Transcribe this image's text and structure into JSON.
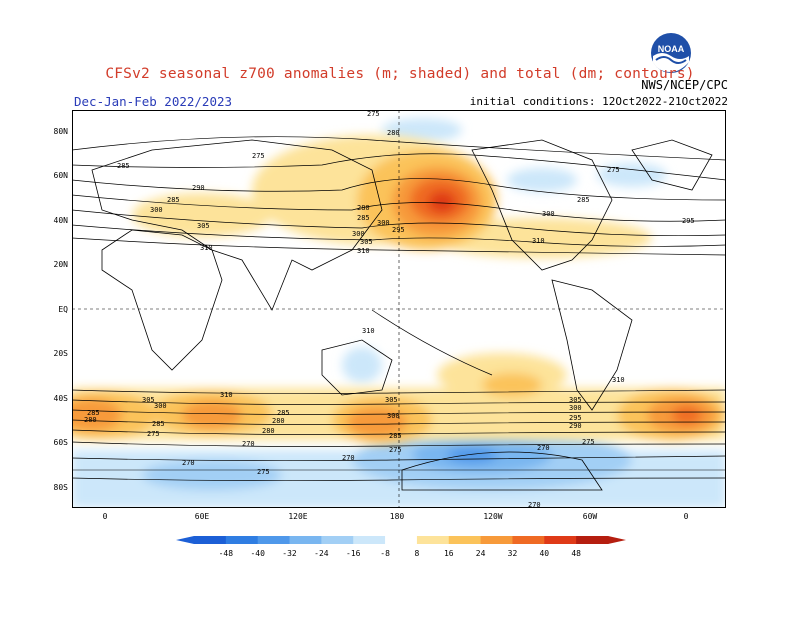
{
  "header": {
    "title": "CFSv2 seasonal z700 anomalies (m; shaded) and total (dm; contours)",
    "season": "Dec-Jan-Feb 2022/2023",
    "initial_conditions": "initial conditions: 12Oct2022-21Oct2022",
    "credit": "NWS/NCEP/CPC",
    "logo_text": "NOAA"
  },
  "axes": {
    "lat_labels": [
      "80N",
      "60N",
      "40N",
      "20N",
      "EQ",
      "20S",
      "40S",
      "60S",
      "80S"
    ],
    "lon_labels": [
      "0",
      "60E",
      "120E",
      "180",
      "120W",
      "60W",
      "0"
    ]
  },
  "contour_labels": [
    "275",
    "280",
    "285",
    "290",
    "295",
    "300",
    "305",
    "310",
    "270",
    "275",
    "280",
    "285",
    "290",
    "295",
    "300",
    "305",
    "310"
  ],
  "colorbar": {
    "ticks": [
      "-48",
      "-40",
      "-32",
      "-24",
      "-16",
      "-8",
      "8",
      "16",
      "24",
      "32",
      "40",
      "48"
    ],
    "colors": [
      "#1c5fd6",
      "#2f7de2",
      "#4f98ea",
      "#79b6f0",
      "#a2cff5",
      "#cce7fa",
      "#ffffff",
      "#fde39a",
      "#fbc35a",
      "#f79a3a",
      "#ef6a24",
      "#df3a18",
      "#b51e10"
    ]
  },
  "colors": {
    "title": "#d23c2a",
    "subtitle": "#2a3cb8"
  }
}
